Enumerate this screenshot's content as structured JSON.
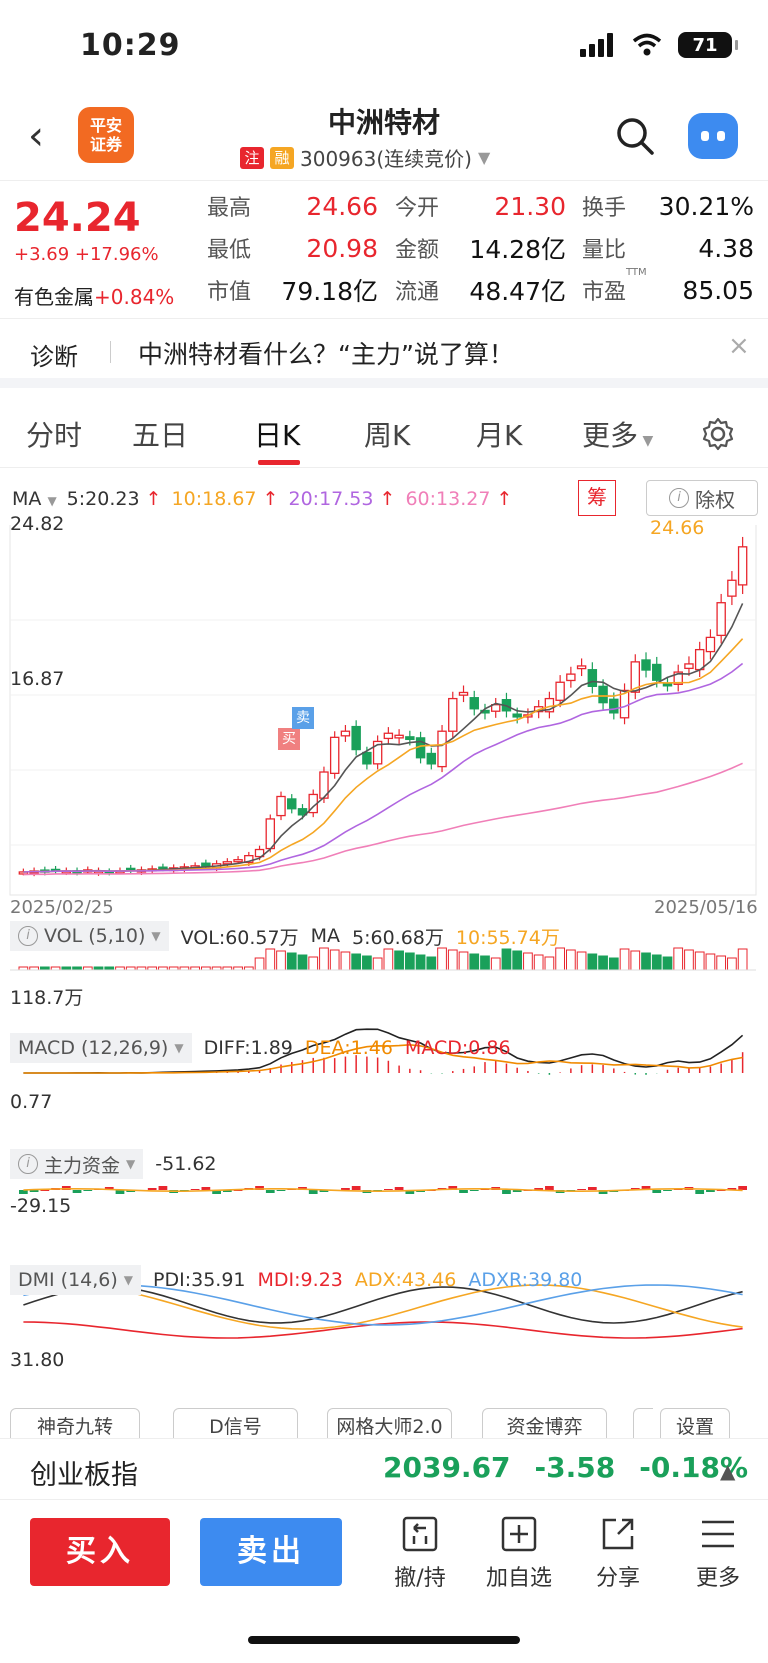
{
  "status": {
    "time": "10:29",
    "battery": "71"
  },
  "header": {
    "title": "中洲特材",
    "tag1": "注",
    "tag2": "融",
    "code": "300963(连续竞价)",
    "logo": "平安\n证券"
  },
  "quote": {
    "price": "24.24",
    "change": "+3.69 +17.96%",
    "sector_name": "有色金属",
    "sector_change": "+0.84%",
    "fields": [
      {
        "label": "最高",
        "value": "24.66",
        "color": "red"
      },
      {
        "label": "今开",
        "value": "21.30",
        "color": "red"
      },
      {
        "label": "换手",
        "value": "30.21%",
        "color": "dark"
      },
      {
        "label": "最低",
        "value": "20.98",
        "color": "red"
      },
      {
        "label": "金额",
        "value": "14.28亿",
        "color": "dark"
      },
      {
        "label": "量比",
        "value": "4.38",
        "color": "dark"
      },
      {
        "label": "市值",
        "value": "79.18亿",
        "color": "dark"
      },
      {
        "label": "流通",
        "value": "48.47亿",
        "color": "dark"
      },
      {
        "label": "市盈",
        "value": "85.05",
        "color": "dark",
        "sup": "TTM"
      }
    ]
  },
  "diagnosis": {
    "label": "诊断",
    "text": "中洲特材看什么？“主力”说了算！",
    "close": "×"
  },
  "tabs": [
    "分时",
    "五日",
    "日K",
    "周K",
    "月K",
    "更多"
  ],
  "ma": {
    "name": "MA",
    "ma5": "5:20.23",
    "ma10": "10:18.67",
    "ma20": "20:17.53",
    "ma60": "60:13.27",
    "chou": "筹",
    "fuquan": "除权"
  },
  "kchart": {
    "y_top_label": "24.82",
    "y_mid_label": "16.87",
    "high_label": "24.66",
    "date_start": "2025/02/25",
    "date_end": "2025/05/16",
    "buy_mark": "买",
    "sell_mark": "卖"
  },
  "vol": {
    "name": "VOL (5,10)",
    "vol": "VOL:60.57万",
    "ma_label": "MA",
    "ma5": "5:60.68万",
    "ma10": "10:55.74万",
    "axis": "118.7万"
  },
  "macd": {
    "name": "MACD (12,26,9)",
    "diff": "DIFF:1.89",
    "dea": "DEA:1.46",
    "macd": "MACD:0.86",
    "axis": "0.77"
  },
  "fund": {
    "name": "主力资金",
    "value": "-51.62",
    "axis": "-29.15"
  },
  "dmi": {
    "name": "DMI (14,6)",
    "pdi": "PDI:35.91",
    "mdi": "MDI:9.23",
    "adx": "ADX:43.46",
    "adxr": "ADXR:39.80",
    "axis": "31.80"
  },
  "chips": [
    "神奇九转",
    "D信号",
    "网格大师2.0",
    "资金博弈",
    "设置"
  ],
  "index": {
    "name": "创业板指",
    "value": "2039.67",
    "change": "-3.58",
    "pct": "-0.18%"
  },
  "bottom": {
    "buy": "买入",
    "sell": "卖出",
    "actions": [
      "撤/持",
      "加自选",
      "分享",
      "更多"
    ]
  },
  "colors": {
    "red": "#e8262e",
    "green": "#1aa05a",
    "blue": "#3d8bf0",
    "orange": "#f5a623",
    "purple": "#b066e0",
    "pink": "#f07fb8"
  }
}
